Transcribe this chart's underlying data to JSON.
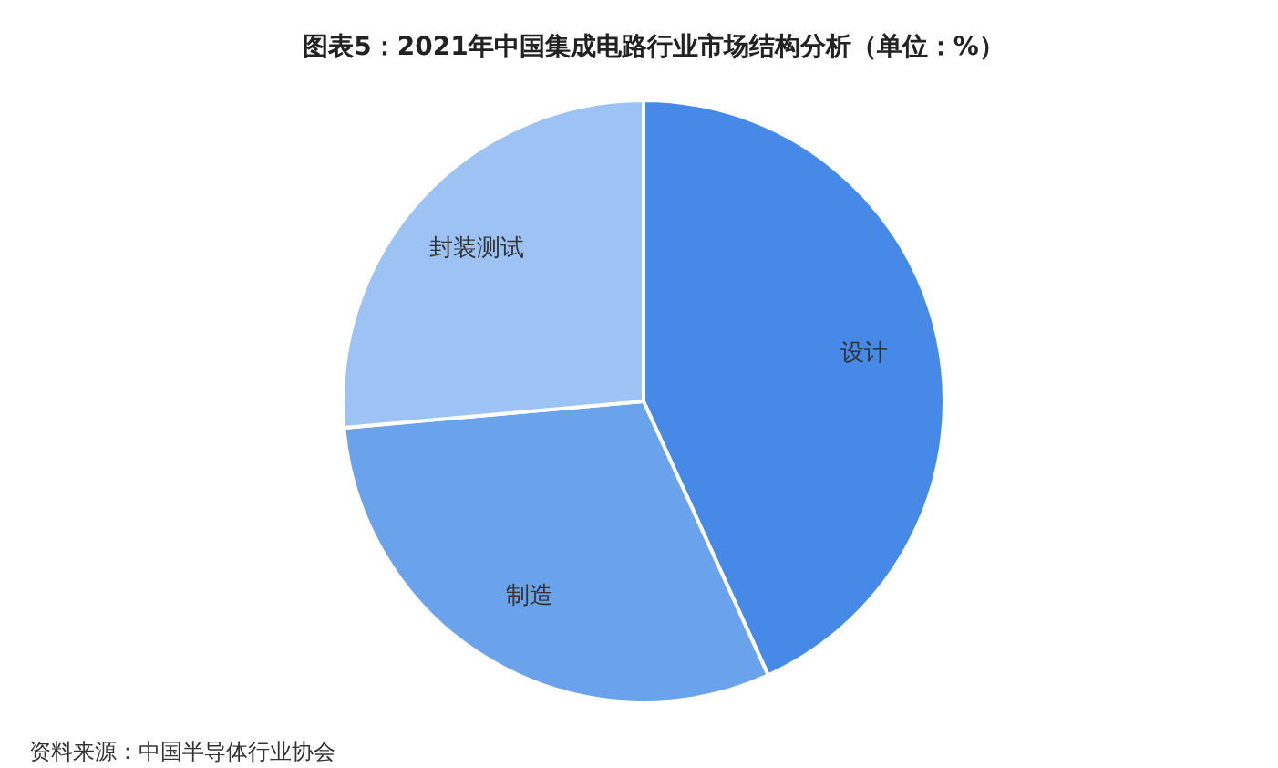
{
  "chart_data": {
    "type": "pie",
    "title": "图表5：2021年中国集成电路行业市场结构分析（单位：%）",
    "categories": [
      "设计",
      "制造",
      "封装测试"
    ],
    "values": [
      43.2,
      30.4,
      26.4
    ],
    "colors": [
      "#4689e6",
      "#6aa2eb",
      "#9dc3f5"
    ],
    "annotations": [
      "资料来源：中国半导体行业协会"
    ]
  }
}
